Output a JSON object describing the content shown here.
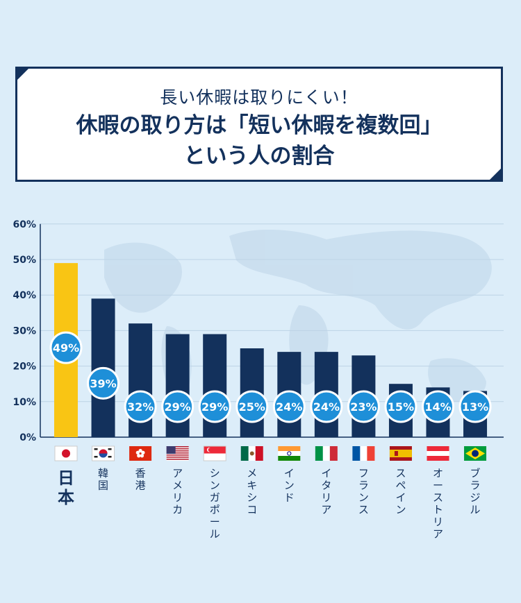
{
  "title": {
    "subtitle": "長い休暇は取りにくい！",
    "line1": "休暇の取り方は「短い休暇を複数回」",
    "line2": "という人の割合"
  },
  "colors": {
    "bar": "#13315c",
    "highlight_bar": "#f9c514",
    "bubble": "#1e8fd8",
    "background": "#dcedf9"
  },
  "chart_data": {
    "type": "bar",
    "categories": [
      "日本",
      "韓国",
      "香港",
      "アメリカ",
      "シンガポール",
      "メキシコ",
      "インド",
      "イタリア",
      "フランス",
      "スペイン",
      "オーストリア",
      "ブラジル"
    ],
    "flags": [
      "japan",
      "korea",
      "hongkong",
      "usa",
      "singapore",
      "mexico",
      "india",
      "italy",
      "france",
      "spain",
      "austria",
      "brazil"
    ],
    "values": [
      49,
      39,
      32,
      29,
      29,
      25,
      24,
      24,
      23,
      15,
      14,
      13
    ],
    "data_labels": [
      "49%",
      "39%",
      "32%",
      "29%",
      "29%",
      "25%",
      "24%",
      "24%",
      "23%",
      "15%",
      "14%",
      "13%"
    ],
    "highlight_index": 0,
    "ylim": [
      0,
      60
    ],
    "y_ticks": [
      "0%",
      "10%",
      "20%",
      "30%",
      "40%",
      "50%",
      "60%"
    ],
    "grid": true,
    "legend": false
  }
}
